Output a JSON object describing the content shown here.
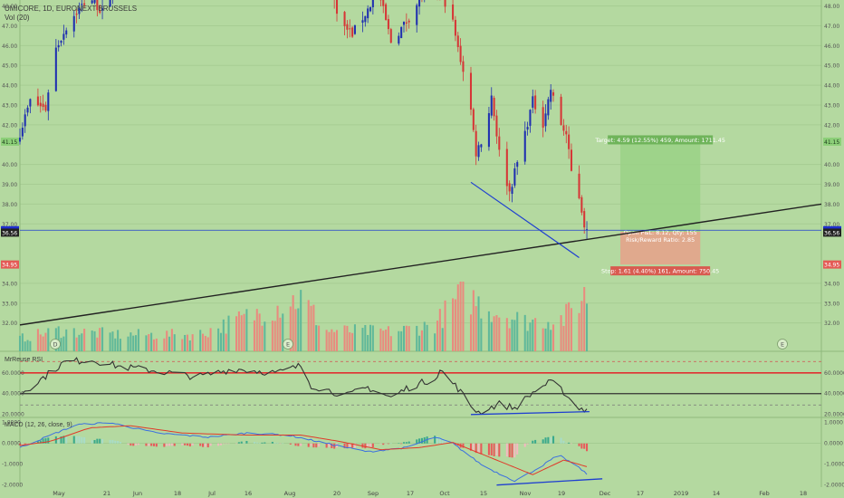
{
  "header": {
    "symbol_line": "UMICORE, 1D, EURONEXT BRUSSELS",
    "volume_label": "Vol (20)",
    "rsi_label": "MrReuse RSI",
    "macd_label": "MACD (12, 26, close, 9)"
  },
  "colors": {
    "background": "#b4d9a0",
    "up_candle": "#1f2fb0",
    "down_candle": "#d63636",
    "vol_up": "#5fb89a",
    "vol_down": "#e98a7e",
    "trend_line": "#222222",
    "blue_line": "#1f3fd0",
    "rsi_line": "#333333",
    "rsi_high_band": "#e03030",
    "macd_line": "#3a6fe0",
    "signal_line": "#e03a2a",
    "hist_pos": "#39a98c",
    "hist_pos_light": "#a8dcc8",
    "hist_neg": "#e85a5a",
    "hist_neg_light": "#f4b9c0",
    "target_box": "#9ad186",
    "stop_box": "#e8a08a"
  },
  "price_axis": {
    "ticks": [
      "48.00",
      "47.00",
      "46.00",
      "45.00",
      "44.00",
      "43.00",
      "42.00",
      "41.15",
      "40.00",
      "39.00",
      "38.00",
      "37.00",
      "36.68",
      "36.56",
      "34.95",
      "34.00",
      "33.00",
      "32.00"
    ],
    "highlight_labels": [
      {
        "text": "41.15",
        "style": "green"
      },
      {
        "text": "36.68",
        "style": "blue"
      },
      {
        "text": "36.56",
        "style": "dark"
      },
      {
        "text": "34.95",
        "style": "red"
      }
    ]
  },
  "rsi_axis": {
    "ticks": [
      "60.0000",
      "40.0000",
      "20.0000"
    ]
  },
  "macd_axis": {
    "ticks": [
      "1.0000",
      "0.0000",
      "-1.0000",
      "-2.0000"
    ]
  },
  "time_axis": {
    "labels": [
      "May",
      "21",
      "Jun",
      "18",
      "Jul",
      "16",
      "Aug",
      "20",
      "Sep",
      "17",
      "Oct",
      "15",
      "Nov",
      "19",
      "Dec",
      "17",
      "2019",
      "14",
      "Feb",
      "18"
    ]
  },
  "event_markers": [
    "D",
    "E",
    "E"
  ],
  "position": {
    "target_label": "Target: 4.59 (12.55%) 459, Amount: 1711.45",
    "stop_label": "Stop: 1.61 (4.40%) 161, Amount: 750.45",
    "pnl_label": "Open P&L: 8.12, Qty: 155",
    "rr_label": "Risk/Reward Ratio: 2.85"
  },
  "chart_data": {
    "type": "candlestick",
    "title": "UMICORE, 1D, EURONEXT BRUSSELS",
    "x_range": [
      "2018-04-23",
      "2019-02-28"
    ],
    "price_ylim": [
      31.3,
      48.3
    ],
    "rsi_ylim": [
      17,
      80
    ],
    "macd_ylim": [
      -2.1,
      1.25
    ],
    "price_anchors": [
      [
        "2018-04-23",
        41.6
      ],
      [
        "2018-04-27",
        43.2
      ],
      [
        "2018-05-03",
        42.8
      ],
      [
        "2018-05-06",
        45.6
      ],
      [
        "2018-05-12",
        47.2
      ],
      [
        "2018-05-20",
        48.5
      ],
      [
        "2018-05-26",
        47.5
      ],
      [
        "2018-06-01",
        50.0
      ],
      [
        "2018-06-15",
        51.5
      ],
      [
        "2018-07-01",
        50.5
      ],
      [
        "2018-07-15",
        51.0
      ],
      [
        "2018-08-01",
        50.0
      ],
      [
        "2018-08-20",
        49.5
      ],
      [
        "2018-08-26",
        47.0
      ],
      [
        "2018-08-30",
        46.6
      ],
      [
        "2018-09-04",
        47.6
      ],
      [
        "2018-09-09",
        48.8
      ],
      [
        "2018-09-14",
        46.2
      ],
      [
        "2018-09-20",
        47.2
      ],
      [
        "2018-09-25",
        48.3
      ],
      [
        "2018-10-01",
        49.0
      ],
      [
        "2018-10-07",
        47.8
      ],
      [
        "2018-10-10",
        45.8
      ],
      [
        "2018-10-14",
        43.8
      ],
      [
        "2018-10-17",
        40.6
      ],
      [
        "2018-10-21",
        41.8
      ],
      [
        "2018-10-23",
        43.5
      ],
      [
        "2018-10-26",
        40.6
      ],
      [
        "2018-10-30",
        38.6
      ],
      [
        "2018-11-01",
        39.6
      ],
      [
        "2018-11-05",
        41.6
      ],
      [
        "2018-11-08",
        43.2
      ],
      [
        "2018-11-12",
        42.1
      ],
      [
        "2018-11-15",
        43.8
      ],
      [
        "2018-11-18",
        42.3
      ],
      [
        "2018-11-21",
        41.5
      ],
      [
        "2018-11-23",
        39.6
      ],
      [
        "2018-11-26",
        38.4
      ],
      [
        "2018-11-28",
        37.0
      ],
      [
        "2018-11-29",
        36.6
      ]
    ],
    "volume_anchors": [
      [
        "2018-04-23",
        0.22
      ],
      [
        "2018-05-08",
        0.35
      ],
      [
        "2018-06-01",
        0.28
      ],
      [
        "2018-07-01",
        0.28
      ],
      [
        "2018-08-10",
        0.9
      ],
      [
        "2018-08-20",
        0.35
      ],
      [
        "2018-09-15",
        0.33
      ],
      [
        "2018-10-01",
        0.45
      ],
      [
        "2018-10-12",
        1.0
      ],
      [
        "2018-10-20",
        0.75
      ],
      [
        "2018-11-05",
        0.5
      ],
      [
        "2018-11-20",
        0.55
      ],
      [
        "2018-11-28",
        0.95
      ]
    ],
    "rsi_anchors": [
      [
        "2018-04-23",
        40
      ],
      [
        "2018-04-28",
        48
      ],
      [
        "2018-05-10",
        70
      ],
      [
        "2018-05-20",
        73
      ],
      [
        "2018-06-01",
        66
      ],
      [
        "2018-06-15",
        62
      ],
      [
        "2018-07-01",
        56
      ],
      [
        "2018-07-15",
        64
      ],
      [
        "2018-08-01",
        60
      ],
      [
        "2018-08-10",
        67
      ],
      [
        "2018-08-14",
        48
      ],
      [
        "2018-08-28",
        38
      ],
      [
        "2018-09-05",
        46
      ],
      [
        "2018-09-14",
        36
      ],
      [
        "2018-09-20",
        45
      ],
      [
        "2018-10-01",
        55
      ],
      [
        "2018-10-03",
        63
      ],
      [
        "2018-10-10",
        45
      ],
      [
        "2018-10-15",
        28
      ],
      [
        "2018-10-18",
        22
      ],
      [
        "2018-10-26",
        30
      ],
      [
        "2018-11-01",
        26
      ],
      [
        "2018-11-10",
        45
      ],
      [
        "2018-11-15",
        51
      ],
      [
        "2018-11-20",
        42
      ],
      [
        "2018-11-24",
        30
      ],
      [
        "2018-11-28",
        24
      ],
      [
        "2018-11-30",
        28
      ]
    ],
    "macd_anchors": [
      [
        "2018-04-23",
        -0.2
      ],
      [
        "2018-05-01",
        0.2
      ],
      [
        "2018-05-15",
        0.9
      ],
      [
        "2018-05-28",
        1.0
      ],
      [
        "2018-06-15",
        0.5
      ],
      [
        "2018-07-05",
        0.3
      ],
      [
        "2018-07-20",
        0.5
      ],
      [
        "2018-08-05",
        0.4
      ],
      [
        "2018-08-20",
        0.0
      ],
      [
        "2018-09-05",
        -0.4
      ],
      [
        "2018-09-20",
        -0.2
      ],
      [
        "2018-10-01",
        0.3
      ],
      [
        "2018-10-08",
        0.0
      ],
      [
        "2018-10-20",
        -1.1
      ],
      [
        "2018-11-01",
        -1.8
      ],
      [
        "2018-11-10",
        -1.2
      ],
      [
        "2018-11-18",
        -0.55
      ],
      [
        "2018-11-24",
        -1.0
      ],
      [
        "2018-11-30",
        -1.55
      ]
    ],
    "signal_anchors": [
      [
        "2018-04-23",
        -0.1
      ],
      [
        "2018-05-05",
        0.1
      ],
      [
        "2018-05-20",
        0.75
      ],
      [
        "2018-06-05",
        0.85
      ],
      [
        "2018-06-25",
        0.5
      ],
      [
        "2018-07-20",
        0.4
      ],
      [
        "2018-08-10",
        0.4
      ],
      [
        "2018-08-25",
        0.1
      ],
      [
        "2018-09-10",
        -0.3
      ],
      [
        "2018-09-25",
        -0.2
      ],
      [
        "2018-10-08",
        0.05
      ],
      [
        "2018-10-25",
        -0.8
      ],
      [
        "2018-11-08",
        -1.5
      ],
      [
        "2018-11-20",
        -0.8
      ],
      [
        "2018-11-30",
        -1.15
      ]
    ],
    "lines": [
      {
        "name": "trend",
        "from": [
          "2018-04-23",
          31.9
        ],
        "to": [
          "2019-02-28",
          38.0
        ]
      },
      {
        "name": "down-support",
        "from": [
          "2018-10-15",
          39.1
        ],
        "to": [
          "2018-11-26",
          35.3
        ]
      },
      {
        "name": "rsi-support",
        "from": [
          "2018-10-15",
          19.8
        ],
        "to": [
          "2018-11-30",
          22.6
        ]
      },
      {
        "name": "macd-support",
        "from": [
          "2018-10-25",
          -2.0
        ],
        "to": [
          "2018-12-05",
          -1.7
        ]
      }
    ],
    "position": {
      "entry": 36.6,
      "target": 41.15,
      "stop": 34.95,
      "start": "2018-12-12",
      "end": "2019-01-12"
    }
  }
}
